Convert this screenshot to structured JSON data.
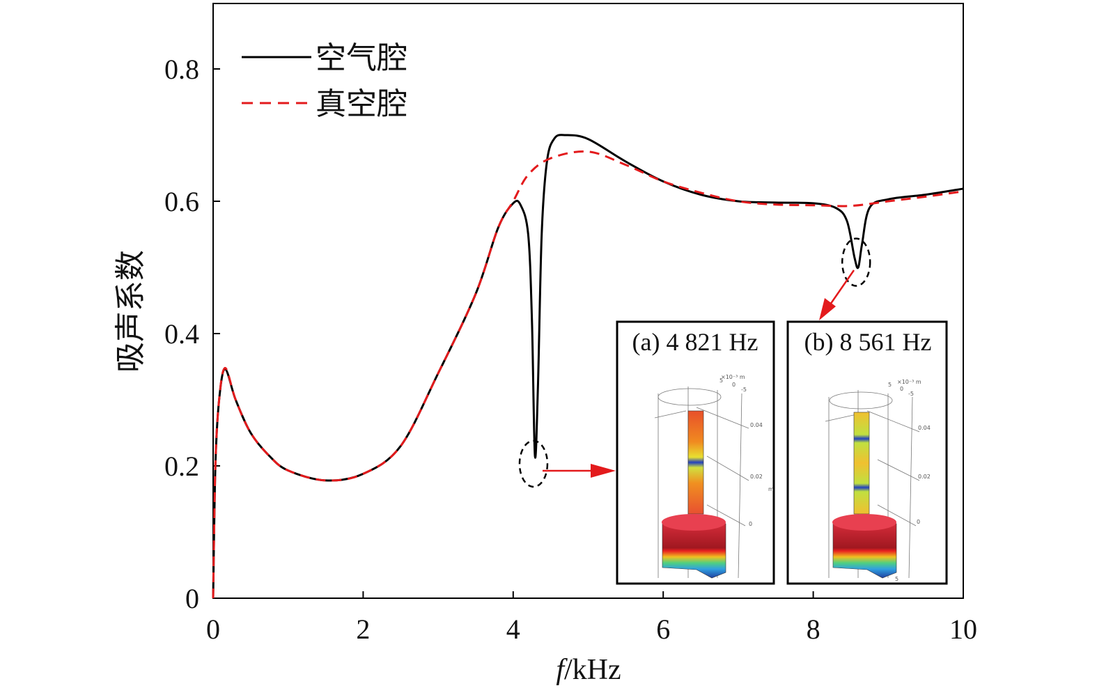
{
  "chart_data": {
    "type": "line",
    "title": "",
    "xlabel_italic": "f",
    "xlabel_rest": "/kHz",
    "ylabel": "吸声系数",
    "xlim": [
      0,
      10
    ],
    "ylim": [
      0,
      0.9
    ],
    "xticks": [
      0,
      2,
      4,
      6,
      8,
      10
    ],
    "yticks": [
      0,
      0.2,
      0.4,
      0.6,
      0.8
    ],
    "ytick_labels": [
      "0",
      "0.2",
      "0.4",
      "0.6",
      "0.8"
    ],
    "xtick_labels": [
      "0",
      "2",
      "4",
      "6",
      "8",
      "10"
    ],
    "grid": false,
    "legend_position": "top-left",
    "series": [
      {
        "name": "空气腔",
        "color": "#000000",
        "style": "solid",
        "x": [
          0,
          0.03,
          0.08,
          0.16,
          0.3,
          0.5,
          0.75,
          1.0,
          1.5,
          2.0,
          2.5,
          3.0,
          3.5,
          3.8,
          4.0,
          4.1,
          4.2,
          4.25,
          4.29,
          4.33,
          4.38,
          4.45,
          4.55,
          4.7,
          5.0,
          5.5,
          6.0,
          6.5,
          7.0,
          7.5,
          8.0,
          8.3,
          8.45,
          8.55,
          8.6,
          8.65,
          8.75,
          9.0,
          9.5,
          10.0
        ],
        "y": [
          0,
          0.2,
          0.3,
          0.346,
          0.3,
          0.25,
          0.215,
          0.193,
          0.178,
          0.188,
          0.23,
          0.34,
          0.46,
          0.56,
          0.597,
          0.594,
          0.55,
          0.42,
          0.215,
          0.32,
          0.55,
          0.66,
          0.695,
          0.7,
          0.694,
          0.66,
          0.63,
          0.61,
          0.6,
          0.598,
          0.597,
          0.59,
          0.57,
          0.515,
          0.5,
          0.535,
          0.59,
          0.603,
          0.61,
          0.619
        ]
      },
      {
        "name": "真空腔",
        "color": "#e31a1c",
        "style": "dashed",
        "x": [
          0,
          0.03,
          0.08,
          0.16,
          0.3,
          0.5,
          0.75,
          1.0,
          1.5,
          2.0,
          2.5,
          3.0,
          3.5,
          3.8,
          4.0,
          4.2,
          4.5,
          5.0,
          5.5,
          6.0,
          6.5,
          7.0,
          7.5,
          8.0,
          8.5,
          9.0,
          9.5,
          10.0
        ],
        "y": [
          0,
          0.2,
          0.3,
          0.348,
          0.3,
          0.25,
          0.215,
          0.193,
          0.178,
          0.188,
          0.23,
          0.34,
          0.46,
          0.56,
          0.6,
          0.64,
          0.665,
          0.675,
          0.655,
          0.63,
          0.613,
          0.6,
          0.595,
          0.594,
          0.593,
          0.6,
          0.607,
          0.615
        ]
      }
    ],
    "annotations": [
      {
        "id": "a",
        "label": "(a) 4 821 Hz",
        "at_x": 4.28,
        "at_y": 0.2,
        "axis_unit": "×10⁻³ m",
        "scale_labels": [
          "5",
          "0",
          "-5",
          "0.04",
          "0.02",
          "0",
          "m"
        ]
      },
      {
        "id": "b",
        "label": "(b) 8 561 Hz",
        "at_x": 8.6,
        "at_y": 0.51,
        "axis_unit": "×10⁻³ m",
        "scale_labels": [
          "5",
          "0",
          "-5",
          "0.04",
          "0.02",
          "0",
          "5"
        ]
      }
    ]
  }
}
